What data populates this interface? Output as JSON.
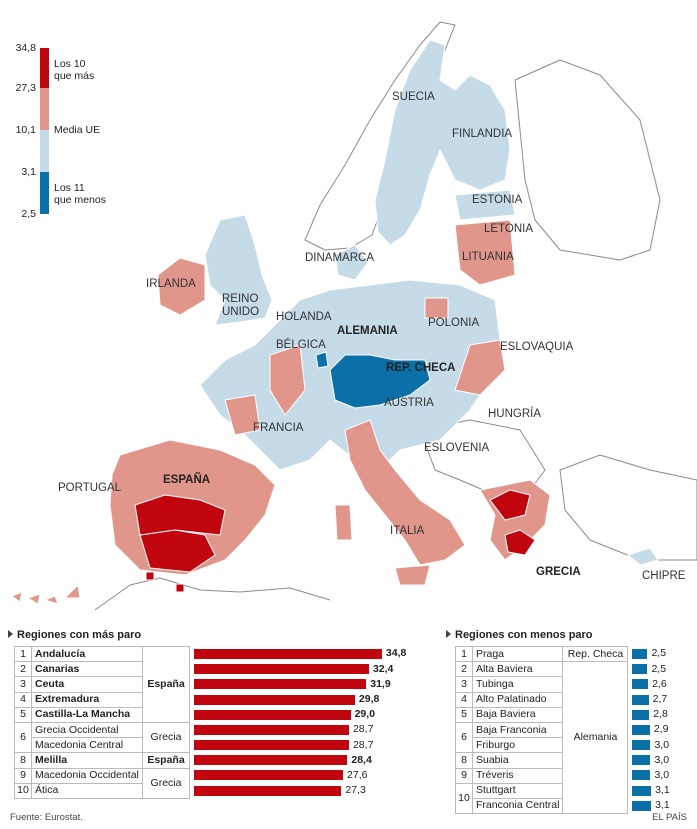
{
  "colors": {
    "top10": "#c0050f",
    "above_avg": "#e0968a",
    "below_avg": "#c5dbe8",
    "bottom11": "#0b6fa8",
    "background_sea": "#ffffff",
    "non_eu": "#ffffff",
    "border": "#ffffff",
    "coast": "#888888"
  },
  "legend": {
    "ticks": [
      "34,8",
      "27,3",
      "10,1",
      "3,1",
      "2,5"
    ],
    "top_label_1": "Los 10",
    "top_label_2": "que más",
    "mid_label": "Media UE",
    "bottom_label_1": "Los 11",
    "bottom_label_2": "que menos"
  },
  "countries": {
    "suecia": "SUECIA",
    "finlandia": "FINLANDIA",
    "estonia": "ESTONIA",
    "letonia": "LETONIA",
    "lituania": "LITUANIA",
    "dinamarca": "DINAMARCA",
    "irlanda": "IRLANDA",
    "reino_unido_1": "REINO",
    "reino_unido_2": "UNIDO",
    "holanda": "HOLANDA",
    "alemania": "ALEMANIA",
    "polonia": "POLONIA",
    "belgica": "BÉLGICA",
    "rep_checa": "REP. CHECA",
    "eslovaquia": "ESLOVAQUIA",
    "austria": "AUSTRIA",
    "francia": "FRANCIA",
    "hungria": "HUNGRÍA",
    "eslovenia": "ESLOVENIA",
    "portugal": "PORTUGAL",
    "espana": "ESPAÑA",
    "italia": "ITALIA",
    "grecia": "GRECIA",
    "chipre": "CHIPRE"
  },
  "most": {
    "title": "Regiones con más paro",
    "rows": [
      {
        "rank": "1",
        "region": "Andalucía",
        "value": 34.8,
        "value_label": "34,8",
        "bold": true
      },
      {
        "rank": "2",
        "region": "Canarias",
        "value": 32.4,
        "value_label": "32,4",
        "bold": true
      },
      {
        "rank": "3",
        "region": "Ceuta",
        "value": 31.9,
        "value_label": "31,9",
        "bold": true
      },
      {
        "rank": "4",
        "region": "Extremadura",
        "value": 29.8,
        "value_label": "29,8",
        "bold": true
      },
      {
        "rank": "5",
        "region": "Castilla-La Mancha",
        "value": 29.0,
        "value_label": "29,0",
        "bold": true
      },
      {
        "rank": "6",
        "region": "Grecia Occidental",
        "value": 28.7,
        "value_label": "28,7",
        "bold": false
      },
      {
        "rank": "",
        "region": "Macedonia Central",
        "value": 28.7,
        "value_label": "28,7",
        "bold": false
      },
      {
        "rank": "8",
        "region": "Melilla",
        "value": 28.4,
        "value_label": "28,4",
        "bold": true
      },
      {
        "rank": "9",
        "region": "Macedonia Occidental",
        "value": 27.6,
        "value_label": "27,6",
        "bold": false
      },
      {
        "rank": "10",
        "region": "Ática",
        "value": 27.3,
        "value_label": "27,3",
        "bold": false
      }
    ],
    "groups": {
      "espana_1": "España",
      "grecia_1": "Grecia",
      "espana_2": "España",
      "grecia_2": "Grecia"
    }
  },
  "least": {
    "title": "Regiones con menos paro",
    "rows": [
      {
        "rank": "1",
        "region": "Praga",
        "value": 2.5,
        "value_label": "2,5"
      },
      {
        "rank": "2",
        "region": "Alta Baviera",
        "value": 2.5,
        "value_label": "2,5"
      },
      {
        "rank": "3",
        "region": "Tubinga",
        "value": 2.6,
        "value_label": "2,6"
      },
      {
        "rank": "4",
        "region": "Alto Palatinado",
        "value": 2.7,
        "value_label": "2,7"
      },
      {
        "rank": "5",
        "region": "Baja Baviera",
        "value": 2.8,
        "value_label": "2,8"
      },
      {
        "rank": "6",
        "region": "Baja Franconia",
        "value": 2.9,
        "value_label": "2,9"
      },
      {
        "rank": "",
        "region": "Friburgo",
        "value": 3.0,
        "value_label": "3,0"
      },
      {
        "rank": "8",
        "region": "Suabia",
        "value": 3.0,
        "value_label": "3,0"
      },
      {
        "rank": "9",
        "region": "Tréveris",
        "value": 3.0,
        "value_label": "3,0"
      },
      {
        "rank": "10",
        "region": "Stuttgart",
        "value": 3.1,
        "value_label": "3,1"
      },
      {
        "rank": "",
        "region": "Franconia Central",
        "value": 3.1,
        "value_label": "3,1"
      }
    ],
    "groups": {
      "rep_checa": "Rep. Checa",
      "alemania": "Alemania"
    }
  },
  "footer": {
    "source": "Fuente: Eurostat.",
    "brand": "EL PAÍS"
  }
}
